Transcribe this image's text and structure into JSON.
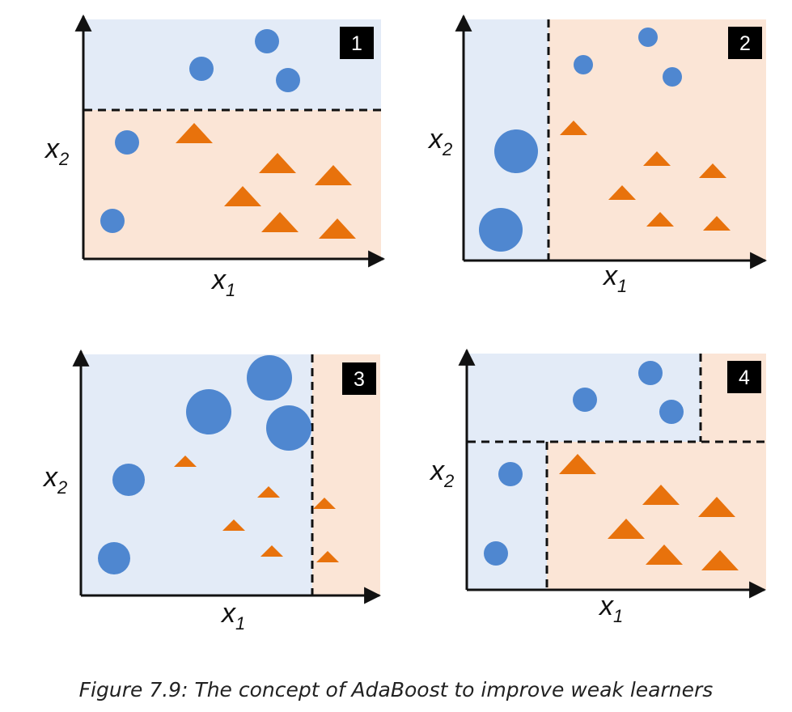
{
  "figure": {
    "caption": "Figure 7.9: The concept of AdaBoost to improve weak learners",
    "axis_labels": {
      "x": "x",
      "x_sub": "1",
      "y": "x",
      "y_sub": "2"
    },
    "colors": {
      "blue_region": "#e3ebf7",
      "orange_region": "#fbe5d6",
      "circle": "#4f87d0",
      "triangle": "#e8720c",
      "axis": "#111111",
      "badge_bg": "#000000",
      "badge_text": "#ffffff",
      "boundary": "#111111"
    },
    "panels": [
      {
        "id": "1",
        "badge": "1"
      },
      {
        "id": "2",
        "badge": "2"
      },
      {
        "id": "3",
        "badge": "3"
      },
      {
        "id": "4",
        "badge": "4"
      }
    ]
  }
}
